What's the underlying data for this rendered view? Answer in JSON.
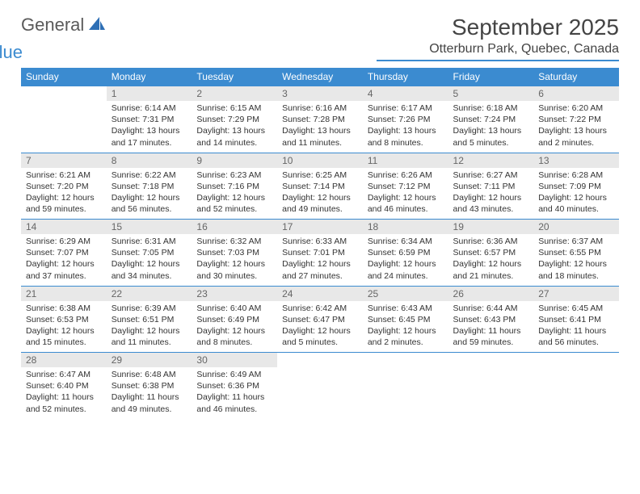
{
  "brand": {
    "part1": "General",
    "part2": "Blue"
  },
  "title": "September 2025",
  "location": "Otterburn Park, Quebec, Canada",
  "colors": {
    "header_bg": "#3b8bd0",
    "header_text": "#ffffff",
    "daynum_bg": "#e8e8e8",
    "daynum_text": "#666666",
    "body_text": "#333333",
    "rule": "#3b8bd0"
  },
  "typography": {
    "title_fontsize": 28,
    "location_fontsize": 16,
    "dayheader_fontsize": 12,
    "daynum_fontsize": 12,
    "cell_fontsize": 10.5
  },
  "day_headers": [
    "Sunday",
    "Monday",
    "Tuesday",
    "Wednesday",
    "Thursday",
    "Friday",
    "Saturday"
  ],
  "weeks": [
    [
      null,
      {
        "n": "1",
        "sr": "Sunrise: 6:14 AM",
        "ss": "Sunset: 7:31 PM",
        "d1": "Daylight: 13 hours",
        "d2": "and 17 minutes."
      },
      {
        "n": "2",
        "sr": "Sunrise: 6:15 AM",
        "ss": "Sunset: 7:29 PM",
        "d1": "Daylight: 13 hours",
        "d2": "and 14 minutes."
      },
      {
        "n": "3",
        "sr": "Sunrise: 6:16 AM",
        "ss": "Sunset: 7:28 PM",
        "d1": "Daylight: 13 hours",
        "d2": "and 11 minutes."
      },
      {
        "n": "4",
        "sr": "Sunrise: 6:17 AM",
        "ss": "Sunset: 7:26 PM",
        "d1": "Daylight: 13 hours",
        "d2": "and 8 minutes."
      },
      {
        "n": "5",
        "sr": "Sunrise: 6:18 AM",
        "ss": "Sunset: 7:24 PM",
        "d1": "Daylight: 13 hours",
        "d2": "and 5 minutes."
      },
      {
        "n": "6",
        "sr": "Sunrise: 6:20 AM",
        "ss": "Sunset: 7:22 PM",
        "d1": "Daylight: 13 hours",
        "d2": "and 2 minutes."
      }
    ],
    [
      {
        "n": "7",
        "sr": "Sunrise: 6:21 AM",
        "ss": "Sunset: 7:20 PM",
        "d1": "Daylight: 12 hours",
        "d2": "and 59 minutes."
      },
      {
        "n": "8",
        "sr": "Sunrise: 6:22 AM",
        "ss": "Sunset: 7:18 PM",
        "d1": "Daylight: 12 hours",
        "d2": "and 56 minutes."
      },
      {
        "n": "9",
        "sr": "Sunrise: 6:23 AM",
        "ss": "Sunset: 7:16 PM",
        "d1": "Daylight: 12 hours",
        "d2": "and 52 minutes."
      },
      {
        "n": "10",
        "sr": "Sunrise: 6:25 AM",
        "ss": "Sunset: 7:14 PM",
        "d1": "Daylight: 12 hours",
        "d2": "and 49 minutes."
      },
      {
        "n": "11",
        "sr": "Sunrise: 6:26 AM",
        "ss": "Sunset: 7:12 PM",
        "d1": "Daylight: 12 hours",
        "d2": "and 46 minutes."
      },
      {
        "n": "12",
        "sr": "Sunrise: 6:27 AM",
        "ss": "Sunset: 7:11 PM",
        "d1": "Daylight: 12 hours",
        "d2": "and 43 minutes."
      },
      {
        "n": "13",
        "sr": "Sunrise: 6:28 AM",
        "ss": "Sunset: 7:09 PM",
        "d1": "Daylight: 12 hours",
        "d2": "and 40 minutes."
      }
    ],
    [
      {
        "n": "14",
        "sr": "Sunrise: 6:29 AM",
        "ss": "Sunset: 7:07 PM",
        "d1": "Daylight: 12 hours",
        "d2": "and 37 minutes."
      },
      {
        "n": "15",
        "sr": "Sunrise: 6:31 AM",
        "ss": "Sunset: 7:05 PM",
        "d1": "Daylight: 12 hours",
        "d2": "and 34 minutes."
      },
      {
        "n": "16",
        "sr": "Sunrise: 6:32 AM",
        "ss": "Sunset: 7:03 PM",
        "d1": "Daylight: 12 hours",
        "d2": "and 30 minutes."
      },
      {
        "n": "17",
        "sr": "Sunrise: 6:33 AM",
        "ss": "Sunset: 7:01 PM",
        "d1": "Daylight: 12 hours",
        "d2": "and 27 minutes."
      },
      {
        "n": "18",
        "sr": "Sunrise: 6:34 AM",
        "ss": "Sunset: 6:59 PM",
        "d1": "Daylight: 12 hours",
        "d2": "and 24 minutes."
      },
      {
        "n": "19",
        "sr": "Sunrise: 6:36 AM",
        "ss": "Sunset: 6:57 PM",
        "d1": "Daylight: 12 hours",
        "d2": "and 21 minutes."
      },
      {
        "n": "20",
        "sr": "Sunrise: 6:37 AM",
        "ss": "Sunset: 6:55 PM",
        "d1": "Daylight: 12 hours",
        "d2": "and 18 minutes."
      }
    ],
    [
      {
        "n": "21",
        "sr": "Sunrise: 6:38 AM",
        "ss": "Sunset: 6:53 PM",
        "d1": "Daylight: 12 hours",
        "d2": "and 15 minutes."
      },
      {
        "n": "22",
        "sr": "Sunrise: 6:39 AM",
        "ss": "Sunset: 6:51 PM",
        "d1": "Daylight: 12 hours",
        "d2": "and 11 minutes."
      },
      {
        "n": "23",
        "sr": "Sunrise: 6:40 AM",
        "ss": "Sunset: 6:49 PM",
        "d1": "Daylight: 12 hours",
        "d2": "and 8 minutes."
      },
      {
        "n": "24",
        "sr": "Sunrise: 6:42 AM",
        "ss": "Sunset: 6:47 PM",
        "d1": "Daylight: 12 hours",
        "d2": "and 5 minutes."
      },
      {
        "n": "25",
        "sr": "Sunrise: 6:43 AM",
        "ss": "Sunset: 6:45 PM",
        "d1": "Daylight: 12 hours",
        "d2": "and 2 minutes."
      },
      {
        "n": "26",
        "sr": "Sunrise: 6:44 AM",
        "ss": "Sunset: 6:43 PM",
        "d1": "Daylight: 11 hours",
        "d2": "and 59 minutes."
      },
      {
        "n": "27",
        "sr": "Sunrise: 6:45 AM",
        "ss": "Sunset: 6:41 PM",
        "d1": "Daylight: 11 hours",
        "d2": "and 56 minutes."
      }
    ],
    [
      {
        "n": "28",
        "sr": "Sunrise: 6:47 AM",
        "ss": "Sunset: 6:40 PM",
        "d1": "Daylight: 11 hours",
        "d2": "and 52 minutes."
      },
      {
        "n": "29",
        "sr": "Sunrise: 6:48 AM",
        "ss": "Sunset: 6:38 PM",
        "d1": "Daylight: 11 hours",
        "d2": "and 49 minutes."
      },
      {
        "n": "30",
        "sr": "Sunrise: 6:49 AM",
        "ss": "Sunset: 6:36 PM",
        "d1": "Daylight: 11 hours",
        "d2": "and 46 minutes."
      },
      null,
      null,
      null,
      null
    ]
  ]
}
